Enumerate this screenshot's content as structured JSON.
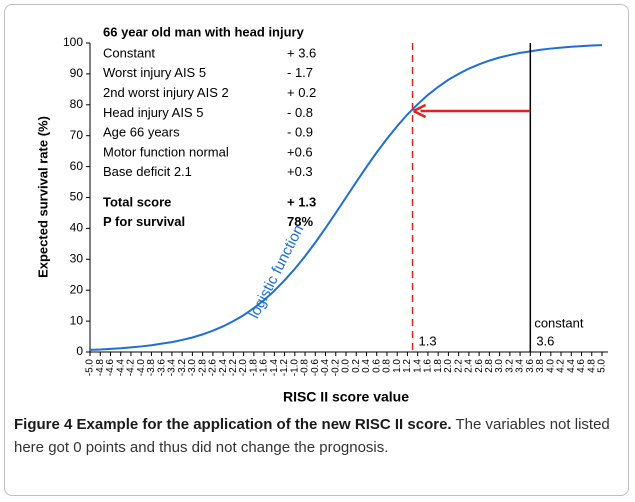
{
  "chart_data": {
    "type": "line",
    "xlabel": "RISC II score value",
    "ylabel": "Expected survival rate (%)",
    "x": [
      -5.0,
      -4.8,
      -4.6,
      -4.4,
      -4.2,
      -4.0,
      -3.8,
      -3.6,
      -3.4,
      -3.2,
      -3.0,
      -2.8,
      -2.6,
      -2.4,
      -2.2,
      -2.0,
      -1.8,
      -1.6,
      -1.4,
      -1.2,
      -1.0,
      -0.8,
      -0.6,
      -0.4,
      -0.2,
      0.0,
      0.2,
      0.4,
      0.6,
      0.8,
      1.0,
      1.2,
      1.4,
      1.6,
      1.8,
      2.0,
      2.2,
      2.4,
      2.6,
      2.8,
      3.0,
      3.2,
      3.4,
      3.6,
      3.8,
      4.0,
      4.2,
      4.4,
      4.6,
      4.8,
      5.0
    ],
    "series": [
      {
        "color": "#1f6fd1",
        "values": [
          0.7,
          0.8,
          1.0,
          1.2,
          1.5,
          1.8,
          2.2,
          2.7,
          3.2,
          3.9,
          4.7,
          5.7,
          6.9,
          8.3,
          10.0,
          11.9,
          14.2,
          16.8,
          19.8,
          23.2,
          26.9,
          31.0,
          35.4,
          40.1,
          45.0,
          50.0,
          55.0,
          59.9,
          64.6,
          69.0,
          73.1,
          76.9,
          80.2,
          83.2,
          85.8,
          88.1,
          90.0,
          91.7,
          93.1,
          94.3,
          95.3,
          96.1,
          96.8,
          97.3,
          97.8,
          98.2,
          98.5,
          98.8,
          99.0,
          99.2,
          99.3
        ]
      }
    ],
    "curve_label": "logistic function",
    "xlim": [
      -5.0,
      5.0
    ],
    "ylim": [
      0,
      100
    ],
    "yticks": [
      0,
      10,
      20,
      30,
      40,
      50,
      60,
      70,
      80,
      90,
      100
    ],
    "xticks": [
      {
        "value": -5,
        "label": "-5.0"
      },
      -4.8,
      -4.6,
      -4.4,
      -4.2,
      {
        "value": -4,
        "label": "-4.0"
      },
      -3.8,
      -3.6,
      -3.4,
      -3.2,
      {
        "value": -3,
        "label": "-3.0"
      },
      -2.8,
      -2.6,
      -2.4,
      -2.2,
      {
        "value": -2,
        "label": "-2.0"
      },
      -1.8,
      -1.6,
      -1.4,
      -1.2,
      {
        "value": -1,
        "label": "-1.0"
      },
      -0.8,
      -0.6,
      -0.4,
      -0.2,
      {
        "value": 0,
        "label": "0.0"
      },
      0.2,
      0.4,
      0.6,
      0.8,
      {
        "value": 1,
        "label": "1.0"
      },
      1.2,
      1.4,
      1.6,
      1.8,
      {
        "value": 2,
        "label": "2.0"
      },
      2.2,
      2.4,
      2.6,
      2.8,
      {
        "value": 3,
        "label": "3.0"
      },
      3.2,
      3.4,
      3.6,
      3.8,
      {
        "value": 4,
        "label": "4.0"
      },
      4.2,
      4.4,
      4.6,
      4.8,
      {
        "value": 5,
        "label": "5.0"
      }
    ],
    "ref_lines": [
      {
        "x": 1.3,
        "color": "#e3201b",
        "dashed": true
      },
      {
        "x": 3.6,
        "color": "#000000",
        "label": "constant"
      }
    ],
    "arrow": {
      "y": 78,
      "color": "#e3201b"
    },
    "table": {
      "title": "66 year old man with head injury",
      "rows": [
        [
          "Constant",
          "+ 3.6"
        ],
        [
          "Worst injury AIS 5",
          "- 1.7"
        ],
        [
          "2nd worst injury AIS 2",
          "+ 0.2"
        ],
        [
          "Head injury AIS 5",
          "- 0.8"
        ],
        [
          "Age 66 years",
          "- 0.9"
        ],
        [
          "Motor function normal",
          "+0.6"
        ],
        [
          "Base deficit 2.1",
          "+0.3"
        ]
      ],
      "totals": [
        [
          "Total score",
          "+ 1.3"
        ],
        [
          "P for survival",
          "78%"
        ]
      ]
    }
  },
  "caption": {
    "title": "Figure 4 Example for the application of the new RISC II score.",
    "text": "The variables not listed here got 0 points and thus did not change the prognosis."
  }
}
